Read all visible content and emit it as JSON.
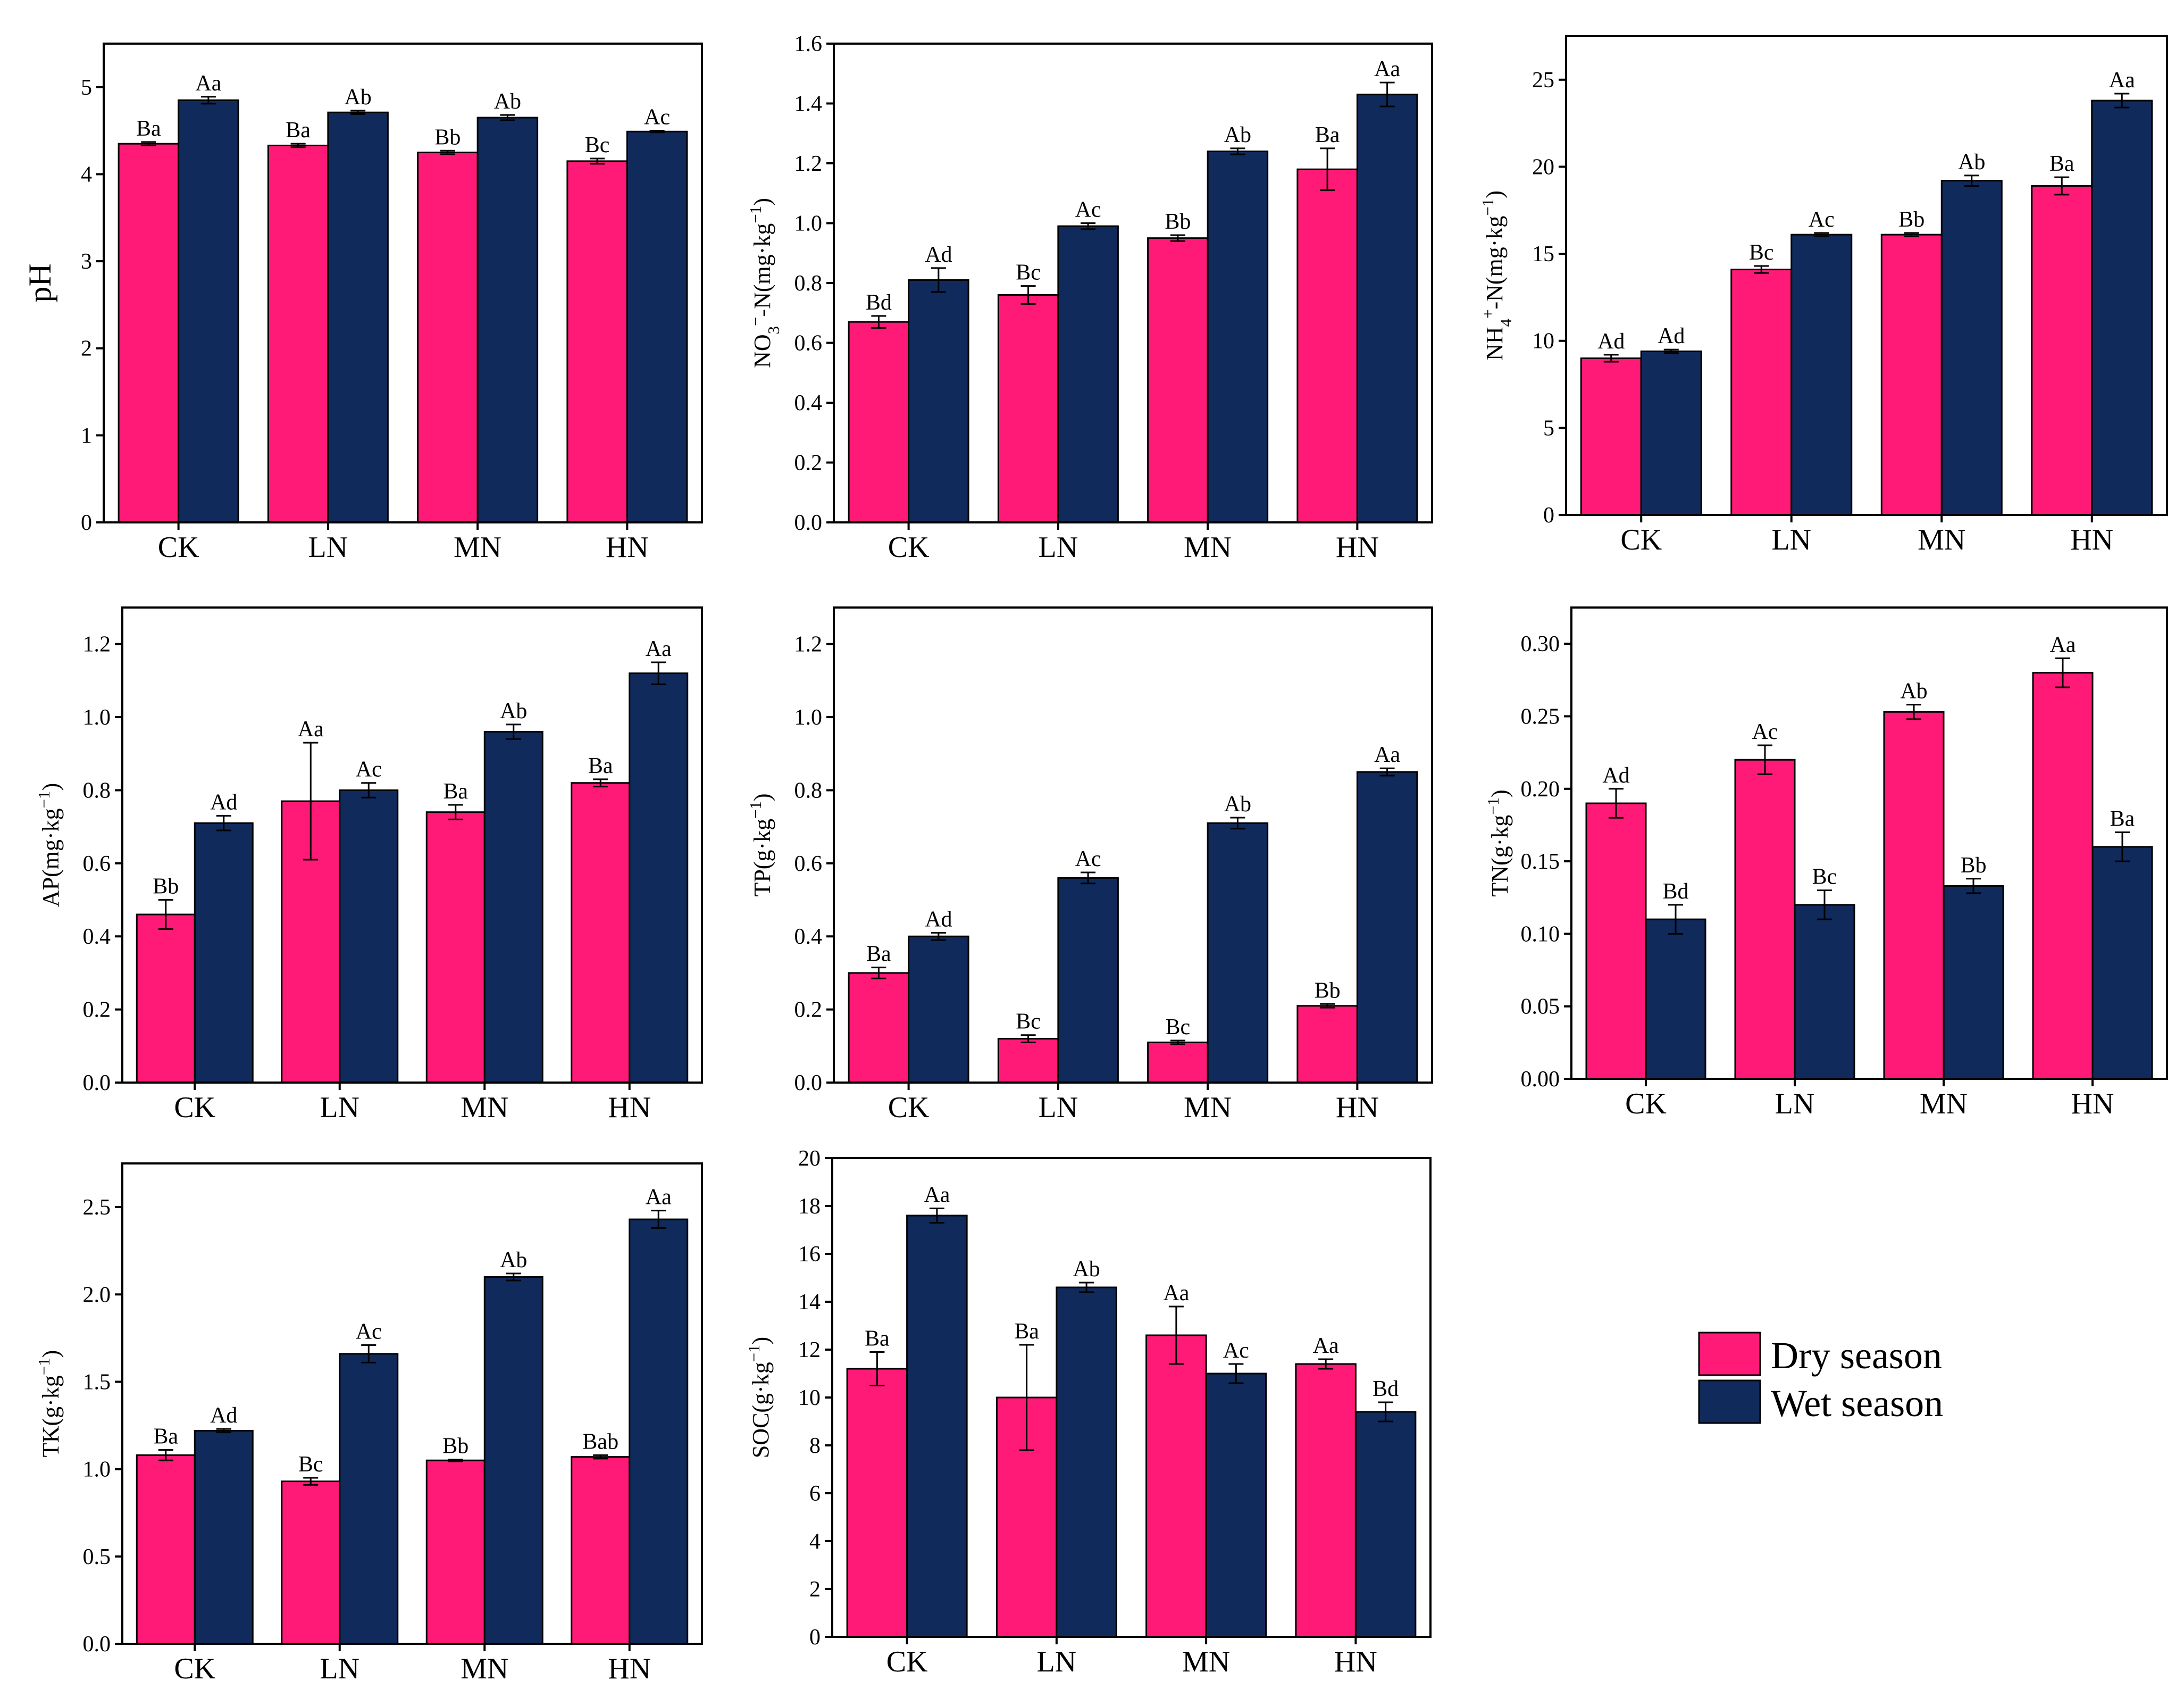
{
  "colors": {
    "dry": "#FF1A77",
    "wet": "#112A5C"
  },
  "legend": {
    "dry": "Dry season",
    "wet": "Wet season"
  },
  "chart_data": [
    {
      "type": "bar",
      "id": "pH",
      "title": "",
      "ylabel": "pH",
      "ylabel_parts": [
        {
          "t": "pH"
        }
      ],
      "categories": [
        "CK",
        "LN",
        "MN",
        "HN"
      ],
      "ylim": [
        0,
        5.5
      ],
      "yticks": [
        0,
        1,
        2,
        3,
        4,
        5
      ],
      "tick_decimals": 0,
      "series": [
        {
          "name": "Dry season",
          "values": [
            4.35,
            4.33,
            4.25,
            4.15
          ],
          "errors": [
            0.02,
            0.02,
            0.02,
            0.03
          ],
          "labels": [
            "Ba",
            "Ba",
            "Bb",
            "Bc"
          ]
        },
        {
          "name": "Wet season",
          "values": [
            4.85,
            4.71,
            4.65,
            4.49
          ],
          "errors": [
            0.04,
            0.02,
            0.03,
            0.01
          ],
          "labels": [
            "Aa",
            "Ab",
            "Ab",
            "Ac"
          ]
        }
      ]
    },
    {
      "type": "bar",
      "id": "NO3",
      "title": "",
      "ylabel": "NO3−-N(mg·kg−1)",
      "ylabel_parts": [
        {
          "t": "NO"
        },
        {
          "t": "3",
          "sub": true
        },
        {
          "t": "−",
          "sup": true
        },
        {
          "t": "-N(mg·kg"
        },
        {
          "t": "−1",
          "sup": true
        },
        {
          "t": ")"
        }
      ],
      "categories": [
        "CK",
        "LN",
        "MN",
        "HN"
      ],
      "ylim": [
        0,
        1.6
      ],
      "yticks": [
        0,
        0.2,
        0.4,
        0.6,
        0.8,
        1.0,
        1.2,
        1.4,
        1.6
      ],
      "tick_decimals": 1,
      "series": [
        {
          "name": "Dry season",
          "values": [
            0.67,
            0.76,
            0.95,
            1.18
          ],
          "errors": [
            0.02,
            0.03,
            0.01,
            0.07
          ],
          "labels": [
            "Bd",
            "Bc",
            "Bb",
            "Ba"
          ]
        },
        {
          "name": "Wet season",
          "values": [
            0.81,
            0.99,
            1.24,
            1.43
          ],
          "errors": [
            0.04,
            0.01,
            0.01,
            0.04
          ],
          "labels": [
            "Ad",
            "Ac",
            "Ab",
            "Aa"
          ]
        }
      ]
    },
    {
      "type": "bar",
      "id": "NH4",
      "title": "",
      "ylabel": "NH4+-N(mg·kg−1)",
      "ylabel_parts": [
        {
          "t": "NH"
        },
        {
          "t": "4",
          "sub": true
        },
        {
          "t": "+",
          "sup": true
        },
        {
          "t": "-N(mg·kg"
        },
        {
          "t": "−1",
          "sup": true
        },
        {
          "t": ")"
        }
      ],
      "categories": [
        "CK",
        "LN",
        "MN",
        "HN"
      ],
      "ylim": [
        0,
        27.5
      ],
      "yticks": [
        0,
        5,
        10,
        15,
        20,
        25
      ],
      "tick_decimals": 0,
      "series": [
        {
          "name": "Dry season",
          "values": [
            9.0,
            14.1,
            16.1,
            18.9
          ],
          "errors": [
            0.2,
            0.2,
            0.1,
            0.5
          ],
          "labels": [
            "Ad",
            "Bc",
            "Bb",
            "Ba"
          ]
        },
        {
          "name": "Wet season",
          "values": [
            9.4,
            16.1,
            19.2,
            23.8
          ],
          "errors": [
            0.1,
            0.1,
            0.3,
            0.4
          ],
          "labels": [
            "Ad",
            "Ac",
            "Ab",
            "Aa"
          ]
        }
      ]
    },
    {
      "type": "bar",
      "id": "AP",
      "title": "",
      "ylabel": "AP(mg·kg−1)",
      "ylabel_parts": [
        {
          "t": "AP(mg·kg"
        },
        {
          "t": "−1",
          "sup": true
        },
        {
          "t": ")"
        }
      ],
      "categories": [
        "CK",
        "LN",
        "MN",
        "HN"
      ],
      "ylim": [
        0,
        1.3
      ],
      "yticks": [
        0,
        0.2,
        0.4,
        0.6,
        0.8,
        1.0,
        1.2
      ],
      "tick_decimals": 1,
      "series": [
        {
          "name": "Dry season",
          "values": [
            0.46,
            0.77,
            0.74,
            0.82
          ],
          "errors": [
            0.04,
            0.16,
            0.02,
            0.01
          ],
          "labels": [
            "Bb",
            "Aa",
            "Ba",
            "Ba"
          ]
        },
        {
          "name": "Wet season",
          "values": [
            0.71,
            0.8,
            0.96,
            1.12
          ],
          "errors": [
            0.02,
            0.02,
            0.02,
            0.03
          ],
          "labels": [
            "Ad",
            "Ac",
            "Ab",
            "Aa"
          ]
        }
      ]
    },
    {
      "type": "bar",
      "id": "TP",
      "title": "",
      "ylabel": "TP(g·kg−1)",
      "ylabel_parts": [
        {
          "t": "TP(g·kg"
        },
        {
          "t": "−1",
          "sup": true
        },
        {
          "t": ")"
        }
      ],
      "categories": [
        "CK",
        "LN",
        "MN",
        "HN"
      ],
      "ylim": [
        0,
        1.3
      ],
      "yticks": [
        0,
        0.2,
        0.4,
        0.6,
        0.8,
        1.0,
        1.2
      ],
      "tick_decimals": 1,
      "series": [
        {
          "name": "Dry season",
          "values": [
            0.3,
            0.12,
            0.11,
            0.21
          ],
          "errors": [
            0.015,
            0.01,
            0.005,
            0.005
          ],
          "labels": [
            "Ba",
            "Bc",
            "Bc",
            "Bb"
          ]
        },
        {
          "name": "Wet season",
          "values": [
            0.4,
            0.56,
            0.71,
            0.85
          ],
          "errors": [
            0.01,
            0.015,
            0.015,
            0.01
          ],
          "labels": [
            "Ad",
            "Ac",
            "Ab",
            "Aa"
          ]
        }
      ]
    },
    {
      "type": "bar",
      "id": "TN",
      "title": "",
      "ylabel": "TN(g·kg−1)",
      "ylabel_parts": [
        {
          "t": "TN(g·kg"
        },
        {
          "t": "−1",
          "sup": true
        },
        {
          "t": ")"
        }
      ],
      "categories": [
        "CK",
        "LN",
        "MN",
        "HN"
      ],
      "ylim": [
        0,
        0.325
      ],
      "yticks": [
        0,
        0.05,
        0.1,
        0.15,
        0.2,
        0.25,
        0.3
      ],
      "tick_decimals": 2,
      "series": [
        {
          "name": "Dry season",
          "values": [
            0.19,
            0.22,
            0.253,
            0.28
          ],
          "errors": [
            0.01,
            0.01,
            0.005,
            0.01
          ],
          "labels": [
            "Ad",
            "Ac",
            "Ab",
            "Aa"
          ]
        },
        {
          "name": "Wet season",
          "values": [
            0.11,
            0.12,
            0.133,
            0.16
          ],
          "errors": [
            0.01,
            0.01,
            0.005,
            0.01
          ],
          "labels": [
            "Bd",
            "Bc",
            "Bb",
            "Ba"
          ]
        }
      ]
    },
    {
      "type": "bar",
      "id": "TK",
      "title": "",
      "ylabel": "TK(g·kg−1)",
      "ylabel_parts": [
        {
          "t": "TK(g·kg"
        },
        {
          "t": "−1",
          "sup": true
        },
        {
          "t": ")"
        }
      ],
      "categories": [
        "CK",
        "LN",
        "MN",
        "HN"
      ],
      "ylim": [
        0,
        2.75
      ],
      "yticks": [
        0,
        0.5,
        1.0,
        1.5,
        2.0,
        2.5
      ],
      "tick_decimals": 1,
      "series": [
        {
          "name": "Dry season",
          "values": [
            1.08,
            0.93,
            1.05,
            1.07
          ],
          "errors": [
            0.03,
            0.02,
            0.005,
            0.01
          ],
          "labels": [
            "Ba",
            "Bc",
            "Bb",
            "Bab"
          ]
        },
        {
          "name": "Wet season",
          "values": [
            1.22,
            1.66,
            2.1,
            2.43
          ],
          "errors": [
            0.01,
            0.05,
            0.02,
            0.05
          ],
          "labels": [
            "Ad",
            "Ac",
            "Ab",
            "Aa"
          ]
        }
      ]
    },
    {
      "type": "bar",
      "id": "SOC",
      "title": "",
      "ylabel": "SOC(g·kg−1)",
      "ylabel_parts": [
        {
          "t": "SOC(g·kg"
        },
        {
          "t": "−1",
          "sup": true
        },
        {
          "t": ")"
        }
      ],
      "categories": [
        "CK",
        "LN",
        "MN",
        "HN"
      ],
      "ylim": [
        0,
        20
      ],
      "yticks": [
        0,
        2,
        4,
        6,
        8,
        10,
        12,
        14,
        16,
        18,
        20
      ],
      "tick_decimals": 0,
      "series": [
        {
          "name": "Dry season",
          "values": [
            11.2,
            10.0,
            12.6,
            11.4
          ],
          "errors": [
            0.7,
            2.2,
            1.2,
            0.2
          ],
          "labels": [
            "Ba",
            "Ba",
            "Aa",
            "Aa"
          ]
        },
        {
          "name": "Wet season",
          "values": [
            17.6,
            14.6,
            11.0,
            9.4
          ],
          "errors": [
            0.3,
            0.2,
            0.4,
            0.4
          ],
          "labels": [
            "Aa",
            "Ab",
            "Ac",
            "Bd"
          ]
        }
      ]
    }
  ]
}
